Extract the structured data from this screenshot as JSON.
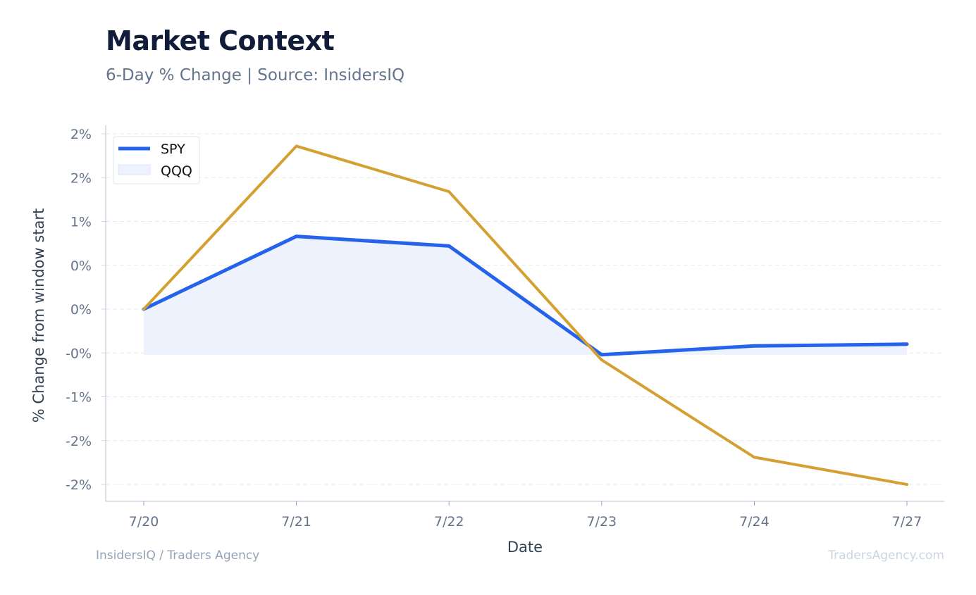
{
  "header": {
    "title": "Market Context",
    "subtitle": "6-Day % Change | Source: InsidersIQ"
  },
  "footer": {
    "left": "InsidersIQ / Traders Agency",
    "right": "TradersAgency.com"
  },
  "chart_data": {
    "type": "line",
    "title": "Market Context",
    "subtitle": "6-Day % Change | Source: InsidersIQ",
    "xlabel": "Date",
    "ylabel": "% Change from window start",
    "categories": [
      "7/20",
      "7/21",
      "7/22",
      "7/23",
      "7/24",
      "7/27"
    ],
    "y_ticks": [
      {
        "value": 2.0,
        "label": "2%"
      },
      {
        "value": 1.5,
        "label": "2%"
      },
      {
        "value": 1.0,
        "label": "1%"
      },
      {
        "value": 0.5,
        "label": "0%"
      },
      {
        "value": 0.0,
        "label": "0%"
      },
      {
        "value": -0.5,
        "label": "-0%"
      },
      {
        "value": -1.0,
        "label": "-1%"
      },
      {
        "value": -1.5,
        "label": "-2%"
      },
      {
        "value": -2.0,
        "label": "-2%"
      }
    ],
    "ylim": [
      -2.2,
      2.05
    ],
    "grid": true,
    "legend_position": "top-left",
    "series": [
      {
        "name": "SPY",
        "values": [
          0.0,
          0.83,
          0.72,
          -0.52,
          -0.42,
          -0.4
        ],
        "color": "#2563eb",
        "fill_color": "#eef2fd",
        "fill_baseline": -0.52
      },
      {
        "name": "QQQ",
        "values": [
          0.0,
          1.86,
          1.34,
          -0.58,
          -1.69,
          -2.0
        ],
        "color": "#d4a032"
      }
    ]
  }
}
